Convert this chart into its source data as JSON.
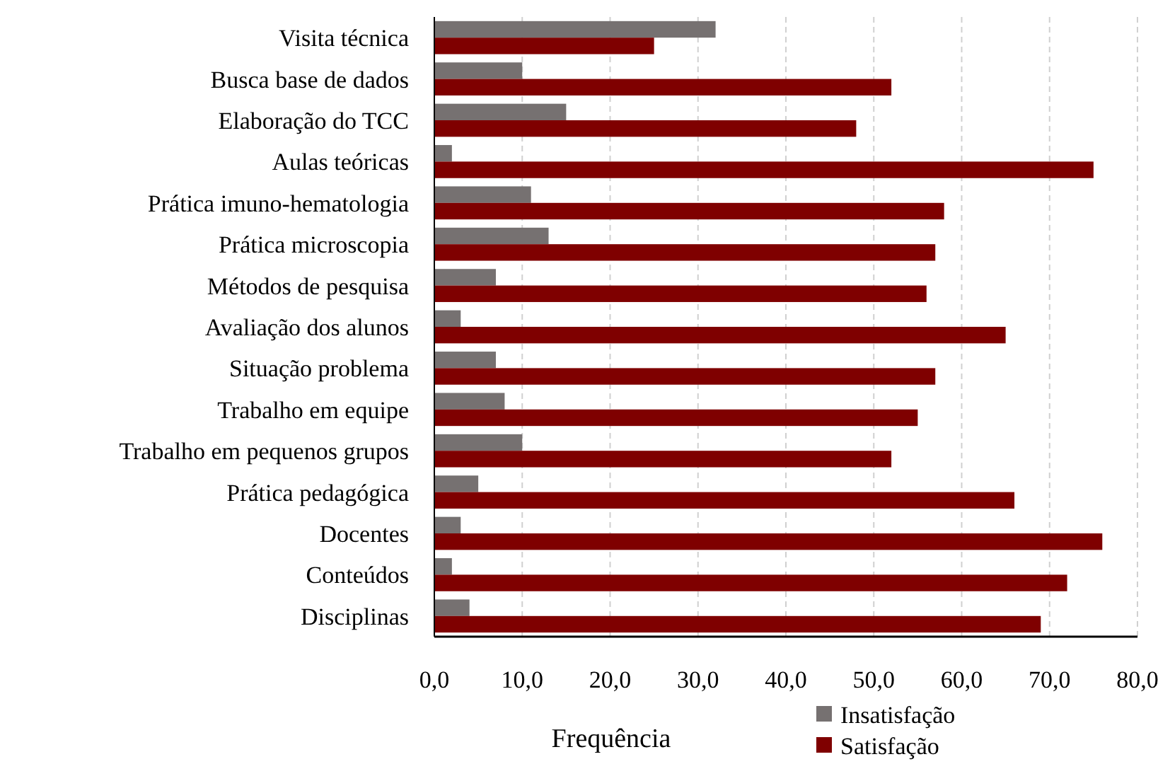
{
  "chart_data": {
    "type": "bar",
    "orientation": "horizontal",
    "xlabel": "Frequência",
    "categories": [
      "Visita técnica",
      "Busca base de dados",
      "Elaboração do TCC",
      "Aulas teóricas",
      "Prática imuno-hematologia",
      "Prática microscopia",
      "Métodos de pesquisa",
      "Avaliação dos alunos",
      "Situação problema",
      "Trabalho em equipe",
      "Trabalho em pequenos grupos",
      "Prática pedagógica",
      "Docentes",
      "Conteúdos",
      "Disciplinas"
    ],
    "series": [
      {
        "name": "Insatisfação",
        "color": "#767171",
        "values": [
          32,
          10,
          15,
          2,
          11,
          13,
          7,
          3,
          7,
          8,
          10,
          5,
          3,
          2,
          4
        ]
      },
      {
        "name": "Satisfação",
        "color": "#7f0000",
        "values": [
          25,
          52,
          48,
          75,
          58,
          57,
          56,
          65,
          57,
          55,
          52,
          66,
          76,
          72,
          69
        ]
      }
    ],
    "xlim": [
      0,
      80
    ],
    "xticks": [
      {
        "value": 0,
        "label": "0,0"
      },
      {
        "value": 10,
        "label": "10,0"
      },
      {
        "value": 20,
        "label": "20,0"
      },
      {
        "value": 30,
        "label": "30,0"
      },
      {
        "value": 40,
        "label": "40,0"
      },
      {
        "value": 50,
        "label": "50,0"
      },
      {
        "value": 60,
        "label": "60,0"
      },
      {
        "value": 70,
        "label": "70,0"
      },
      {
        "value": 80,
        "label": "80,0"
      }
    ],
    "grid": "x",
    "legend": "bottom right"
  }
}
